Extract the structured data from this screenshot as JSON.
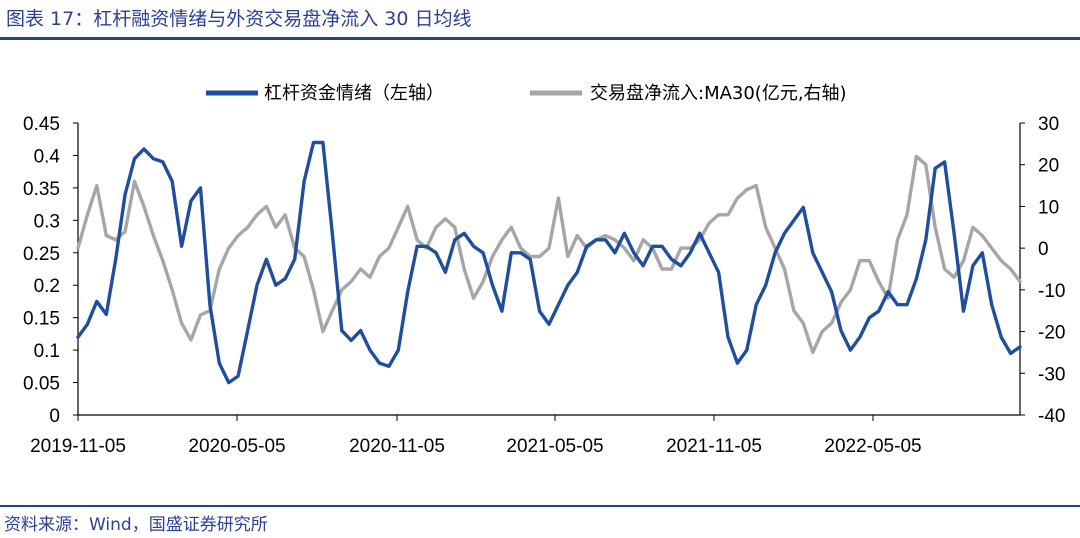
{
  "header": {
    "title": "图表 17：杠杆融资情绪与外资交易盘净流入 30 日均线"
  },
  "footer": {
    "source": "资料来源：Wind，国盛证券研究所"
  },
  "chart_data": {
    "type": "line",
    "title": "图表 17：杠杆融资情绪与外资交易盘净流入 30 日均线",
    "x_ticks": [
      "2019-11-05",
      "2020-05-05",
      "2020-11-05",
      "2021-05-05",
      "2021-11-05",
      "2022-05-05"
    ],
    "y_left": {
      "ticks": [
        "0.45",
        "0.4",
        "0.35",
        "0.3",
        "0.25",
        "0.2",
        "0.15",
        "0.1",
        "0.05",
        "0"
      ],
      "lim": [
        0,
        0.45
      ]
    },
    "y_right": {
      "ticks": [
        "30",
        "20",
        "10",
        "0",
        "-10",
        "-20",
        "-30",
        "-40"
      ],
      "lim": [
        -40,
        30
      ]
    },
    "legend": {
      "placement": "top",
      "entries": [
        "杠杆资金情绪（左轴）",
        "交易盘净流入:MA30(亿元,右轴)"
      ]
    },
    "colors": {
      "series1": "#1f4e9e",
      "series2": "#a6a6a6",
      "axis": "#000000",
      "rule": "#2b3f97"
    },
    "series": [
      {
        "name": "杠杆资金情绪（左轴）",
        "axis": "left",
        "x": [
          0,
          0.01,
          0.02,
          0.03,
          0.04,
          0.05,
          0.06,
          0.07,
          0.08,
          0.09,
          0.1,
          0.11,
          0.12,
          0.13,
          0.14,
          0.15,
          0.16,
          0.17,
          0.18,
          0.19,
          0.2,
          0.21,
          0.22,
          0.23,
          0.24,
          0.25,
          0.26,
          0.27,
          0.28,
          0.29,
          0.3,
          0.31,
          0.32,
          0.33,
          0.34,
          0.35,
          0.36,
          0.37,
          0.38,
          0.39,
          0.4,
          0.41,
          0.42,
          0.43,
          0.44,
          0.45,
          0.46,
          0.47,
          0.48,
          0.49,
          0.5,
          0.51,
          0.52,
          0.53,
          0.54,
          0.55,
          0.56,
          0.57,
          0.58,
          0.59,
          0.6,
          0.61,
          0.62,
          0.63,
          0.64,
          0.65,
          0.66,
          0.67,
          0.68,
          0.69,
          0.7,
          0.71,
          0.72,
          0.73,
          0.74,
          0.75,
          0.76,
          0.77,
          0.78,
          0.79,
          0.8,
          0.81,
          0.82,
          0.83,
          0.84,
          0.85,
          0.86,
          0.87,
          0.88,
          0.89,
          0.9,
          0.91,
          0.92,
          0.93,
          0.94,
          0.95,
          0.96,
          0.97,
          0.98,
          0.99,
          1.0
        ],
        "values": [
          0.12,
          0.14,
          0.175,
          0.155,
          0.24,
          0.34,
          0.395,
          0.41,
          0.395,
          0.39,
          0.36,
          0.26,
          0.33,
          0.35,
          0.17,
          0.08,
          0.05,
          0.06,
          0.13,
          0.2,
          0.24,
          0.2,
          0.21,
          0.24,
          0.36,
          0.42,
          0.42,
          0.28,
          0.13,
          0.115,
          0.13,
          0.1,
          0.08,
          0.075,
          0.1,
          0.19,
          0.26,
          0.26,
          0.25,
          0.22,
          0.27,
          0.28,
          0.26,
          0.25,
          0.2,
          0.16,
          0.25,
          0.25,
          0.24,
          0.16,
          0.14,
          0.17,
          0.2,
          0.22,
          0.26,
          0.27,
          0.27,
          0.25,
          0.28,
          0.25,
          0.23,
          0.26,
          0.26,
          0.24,
          0.23,
          0.25,
          0.28,
          0.25,
          0.22,
          0.12,
          0.08,
          0.1,
          0.17,
          0.2,
          0.25,
          0.28,
          0.3,
          0.32,
          0.25,
          0.22,
          0.19,
          0.13,
          0.1,
          0.12,
          0.15,
          0.16,
          0.19,
          0.17,
          0.17,
          0.21,
          0.27,
          0.38,
          0.39,
          0.28,
          0.16,
          0.23,
          0.25,
          0.17,
          0.12,
          0.095,
          0.105
        ]
      },
      {
        "name": "交易盘净流入:MA30(亿元,右轴)",
        "axis": "right",
        "x": [
          0,
          0.01,
          0.02,
          0.03,
          0.04,
          0.05,
          0.06,
          0.07,
          0.08,
          0.09,
          0.1,
          0.11,
          0.12,
          0.13,
          0.14,
          0.15,
          0.16,
          0.17,
          0.18,
          0.19,
          0.2,
          0.21,
          0.22,
          0.23,
          0.24,
          0.25,
          0.26,
          0.27,
          0.28,
          0.29,
          0.3,
          0.31,
          0.32,
          0.33,
          0.34,
          0.35,
          0.36,
          0.37,
          0.38,
          0.39,
          0.4,
          0.41,
          0.42,
          0.43,
          0.44,
          0.45,
          0.46,
          0.47,
          0.48,
          0.49,
          0.5,
          0.51,
          0.52,
          0.53,
          0.54,
          0.55,
          0.56,
          0.57,
          0.58,
          0.59,
          0.6,
          0.61,
          0.62,
          0.63,
          0.64,
          0.65,
          0.66,
          0.67,
          0.68,
          0.69,
          0.7,
          0.71,
          0.72,
          0.73,
          0.74,
          0.75,
          0.76,
          0.77,
          0.78,
          0.79,
          0.8,
          0.81,
          0.82,
          0.83,
          0.84,
          0.85,
          0.86,
          0.87,
          0.88,
          0.89,
          0.9,
          0.91,
          0.92,
          0.93,
          0.94,
          0.95,
          0.96,
          0.97,
          0.98,
          0.99,
          1.0
        ],
        "values": [
          0,
          8,
          15,
          3,
          2,
          4,
          16,
          10,
          3,
          -3,
          -10,
          -18,
          -22,
          -16,
          -15,
          -5,
          0,
          3,
          5,
          8,
          10,
          5,
          8,
          0,
          -2,
          -10,
          -20,
          -15,
          -10,
          -8,
          -5,
          -7,
          -2,
          0,
          5,
          10,
          2,
          0,
          5,
          7,
          5,
          -5,
          -12,
          -8,
          -2,
          2,
          5,
          0,
          -2,
          -2,
          0,
          12,
          -2,
          3,
          0,
          2,
          3,
          2,
          0,
          -3,
          2,
          0,
          -5,
          -5,
          0,
          0,
          2,
          6,
          8,
          8,
          12,
          14,
          15,
          5,
          0,
          -5,
          -15,
          -18,
          -25,
          -20,
          -18,
          -13,
          -10,
          -3,
          -3,
          -8,
          -12,
          2,
          8,
          22,
          20,
          5,
          -5,
          -7,
          -3,
          5,
          3,
          0,
          -3,
          -5,
          -8
        ]
      }
    ]
  }
}
